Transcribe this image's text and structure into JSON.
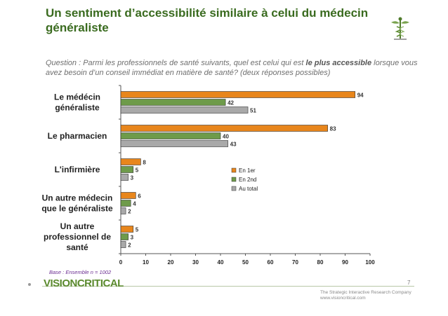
{
  "header": {
    "title_line1": "Un sentiment d’accessibilité similaire à celui du médecin",
    "title_line2": "généraliste"
  },
  "question": {
    "prefix": "Question : Parmi les professionnels de santé suivants, quel est celui qui est ",
    "emphasis": "le plus accessible",
    "suffix_line1": " lorsque vous",
    "line2": "avez besoin d’un conseil immédiat en matière de santé? (deux réponses possibles)"
  },
  "base_note": "Base :  Ensemble n = 1002",
  "footer": {
    "brand": "VISIONCRITICAL",
    "tagline_line1": "The Strategic Interactive Research Company",
    "tagline_line2": "www.visioncritical.com",
    "page_number": "7"
  },
  "colors": {
    "en_1er": "#e8861c",
    "en_2nd": "#6e9b4a",
    "au_total": "#a9a9a9",
    "title": "#3a6b1f"
  },
  "chart_data": {
    "type": "bar",
    "orientation": "horizontal",
    "categories": [
      [
        "Le médécin",
        "généraliste"
      ],
      [
        "Le pharmacien"
      ],
      [
        "L'infirmière"
      ],
      [
        "Un autre médecin",
        "que le généraliste"
      ],
      [
        "Un autre",
        "professionnel de",
        "santé"
      ]
    ],
    "series": [
      {
        "name": "En 1er",
        "values": [
          94,
          83,
          8,
          6,
          5
        ]
      },
      {
        "name": "En 2nd",
        "values": [
          42,
          40,
          5,
          4,
          3
        ]
      },
      {
        "name": "Au total",
        "values": [
          51,
          43,
          3,
          2,
          2
        ]
      }
    ],
    "xlim": [
      0,
      100
    ],
    "xticks": [
      0,
      10,
      20,
      30,
      40,
      50,
      60,
      70,
      80,
      90,
      100
    ],
    "legend_position": "center-right"
  }
}
